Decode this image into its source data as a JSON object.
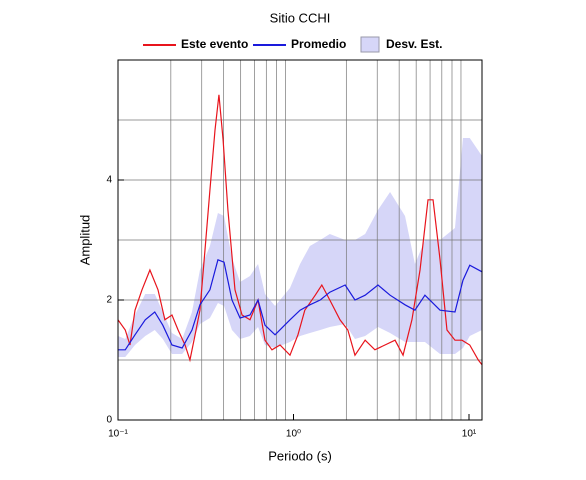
{
  "chart_data": {
    "type": "line",
    "title": "Sitio CCHI",
    "xlabel": "Periodo (s)",
    "ylabel": "Amplitud",
    "xscale": "log",
    "xlim": [
      0.1,
      11.86
    ],
    "ylim": [
      0,
      6
    ],
    "xticks": [
      {
        "value": 0.1,
        "label": "10⁻¹"
      },
      {
        "value": 1,
        "label": "10⁰"
      },
      {
        "value": 10,
        "label": "10¹"
      }
    ],
    "xgrid": [
      0.2,
      0.3,
      0.4,
      0.5,
      0.6,
      0.7,
      0.8,
      0.9,
      2,
      3,
      4,
      5,
      6,
      7,
      8,
      9
    ],
    "yticks": [
      0,
      2,
      4
    ],
    "ygrid": [
      1,
      2,
      3,
      4,
      5
    ],
    "grid": true,
    "legend": "top",
    "series": [
      {
        "name": "Este evento",
        "color": "#e8141c",
        "x": [
          0.1,
          0.11,
          0.117,
          0.125,
          0.137,
          0.152,
          0.169,
          0.185,
          0.203,
          0.22,
          0.241,
          0.257,
          0.275,
          0.293,
          0.313,
          0.334,
          0.357,
          0.376,
          0.397,
          0.423,
          0.464,
          0.509,
          0.565,
          0.628,
          0.688,
          0.754,
          0.838,
          0.955,
          1.06,
          1.16,
          1.33,
          1.45,
          1.61,
          1.84,
          2.04,
          2.24,
          2.56,
          2.91,
          3.32,
          3.79,
          4.21,
          4.73,
          5.26,
          5.84,
          6.24,
          6.84,
          7.49,
          8.32,
          9.12,
          10.1,
          11.3,
          11.86
        ],
        "values": [
          1.67,
          1.5,
          1.25,
          1.83,
          2.17,
          2.5,
          2.17,
          1.67,
          1.75,
          1.5,
          1.25,
          1.0,
          1.42,
          1.83,
          2.83,
          3.83,
          4.83,
          5.42,
          4.67,
          3.5,
          2.17,
          1.75,
          1.67,
          2.0,
          1.33,
          1.17,
          1.25,
          1.08,
          1.42,
          1.83,
          2.08,
          2.25,
          2.0,
          1.67,
          1.5,
          1.08,
          1.33,
          1.17,
          1.25,
          1.33,
          1.08,
          1.67,
          2.5,
          3.67,
          3.67,
          2.67,
          1.5,
          1.33,
          1.33,
          1.25,
          1.0,
          0.92
        ]
      },
      {
        "name": "Promedio",
        "color": "#1a1adc",
        "x": [
          0.1,
          0.11,
          0.125,
          0.143,
          0.162,
          0.18,
          0.203,
          0.232,
          0.264,
          0.293,
          0.334,
          0.371,
          0.402,
          0.446,
          0.496,
          0.565,
          0.628,
          0.688,
          0.785,
          0.955,
          1.09,
          1.24,
          1.42,
          1.61,
          1.97,
          2.24,
          2.56,
          3.03,
          3.55,
          4.32,
          4.92,
          5.61,
          6.84,
          8.32,
          9.24,
          10.1,
          11.86
        ],
        "values": [
          1.17,
          1.17,
          1.42,
          1.67,
          1.8,
          1.58,
          1.25,
          1.2,
          1.5,
          1.92,
          2.17,
          2.67,
          2.63,
          2.0,
          1.7,
          1.75,
          2.0,
          1.58,
          1.42,
          1.67,
          1.83,
          1.92,
          2.0,
          2.13,
          2.25,
          2.0,
          2.08,
          2.25,
          2.08,
          1.92,
          1.83,
          2.08,
          1.83,
          1.8,
          2.33,
          2.58,
          2.47
        ]
      }
    ],
    "band": {
      "name": "Desv. Est.",
      "color": "#d6d6f8",
      "lower": [
        1.05,
        1.05,
        1.25,
        1.4,
        1.5,
        1.35,
        1.1,
        1.1,
        1.3,
        1.6,
        1.7,
        1.95,
        1.9,
        1.5,
        1.35,
        1.4,
        1.55,
        1.25,
        1.2,
        1.3,
        1.4,
        1.45,
        1.5,
        1.55,
        1.6,
        1.35,
        1.4,
        1.55,
        1.45,
        1.3,
        1.3,
        1.3,
        1.1,
        1.1,
        1.2,
        1.4,
        1.5
      ],
      "upper": [
        1.4,
        1.35,
        1.75,
        2.1,
        2.1,
        1.8,
        1.45,
        1.35,
        1.8,
        2.5,
        2.9,
        3.45,
        3.4,
        2.7,
        2.3,
        2.4,
        2.6,
        2.1,
        1.9,
        2.2,
        2.6,
        2.9,
        3.0,
        3.1,
        3.0,
        3.0,
        3.1,
        3.5,
        3.8,
        3.4,
        2.6,
        3.0,
        3.0,
        3.2,
        4.7,
        4.7,
        4.4
      ]
    }
  }
}
